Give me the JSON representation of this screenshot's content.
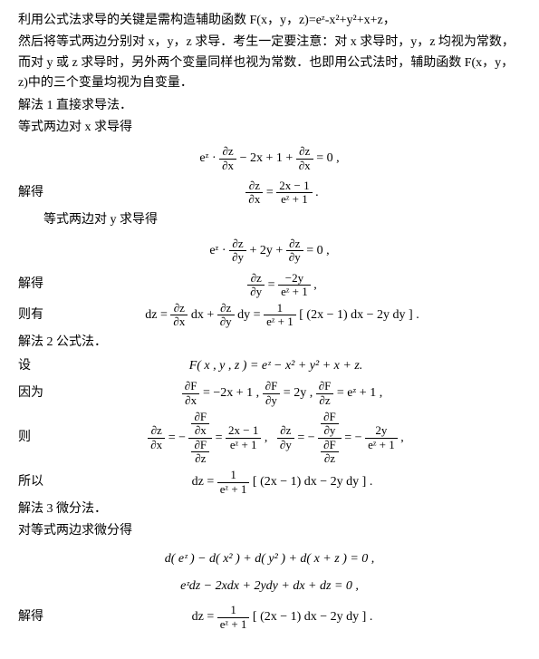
{
  "p1": "利用公式法求导的关键是需构造辅助函数 F(x，y，z)=eᶻ-x²+y²+x+z，",
  "p2": "然后将等式两边分别对 x，y，z 求导．考生一定要注意：对 x 求导时，y，z 均视为常数，而对 y 或 z 求导时，另外两个变量同样也视为常数．也即用公式法时，辅助函数 F(x，y，z)中的三个变量均视为自变量．",
  "p3": "解法 1 直接求导法．",
  "p4": "等式两边对 x 求导得",
  "label_jiede": "解得",
  "p5": "等式两边对 y 求导得",
  "label_zeyou": "则有",
  "p6": "解法 2 公式法．",
  "label_she": "设",
  "label_yinwei": "因为",
  "label_ze": "则",
  "label_suoyi": "所以",
  "p7": "解法 3 微分法．",
  "p8": "对等式两边求微分得",
  "eq1_a": "eᶻ ·",
  "eq1_num1": "∂z",
  "eq1_den1": "∂x",
  "eq1_b": "− 2x + 1 +",
  "eq1_num2": "∂z",
  "eq1_den2": "∂x",
  "eq1_c": "= 0 ,",
  "eq2_l_num": "∂z",
  "eq2_l_den": "∂x",
  "eq2_mid": "=",
  "eq2_r_num": "2x − 1",
  "eq2_r_den": "eᶻ + 1",
  "eq2_end": ".",
  "eq3_a": "eᶻ ·",
  "eq3_num1": "∂z",
  "eq3_den1": "∂y",
  "eq3_b": "+ 2y +",
  "eq3_num2": "∂z",
  "eq3_den2": "∂y",
  "eq3_c": "= 0 ,",
  "eq4_l_num": "∂z",
  "eq4_l_den": "∂y",
  "eq4_mid": "=",
  "eq4_r_num": "−2y",
  "eq4_r_den": "eᶻ + 1",
  "eq4_end": ",",
  "eq5_a": "dz =",
  "eq5_num1": "∂z",
  "eq5_den1": "∂x",
  "eq5_b": "dx +",
  "eq5_num2": "∂z",
  "eq5_den2": "∂y",
  "eq5_c": "dy =",
  "eq5_num3": "1",
  "eq5_den3": "eᶻ + 1",
  "eq5_d": "[ (2x − 1) dx − 2y dy ] .",
  "eq6": "F( x , y , z ) = eᶻ − x² + y² + x + z.",
  "eq7_num1": "∂F",
  "eq7_den1": "∂x",
  "eq7_a": "= −2x + 1 ,",
  "eq7_num2": "∂F",
  "eq7_den2": "∂y",
  "eq7_b": "= 2y ,",
  "eq7_num3": "∂F",
  "eq7_den3": "∂z",
  "eq7_c": "= eᶻ + 1 ,",
  "eq8_l_num": "∂z",
  "eq8_l_den": "∂x",
  "eq8_a": "= −",
  "eq8_big_num_num": "∂F",
  "eq8_big_num_den": "∂x",
  "eq8_big_den_num": "∂F",
  "eq8_big_den_den": "∂z",
  "eq8_b": "=",
  "eq8_r_num": "2x − 1",
  "eq8_r_den": "eᶻ + 1",
  "eq8_c": ",",
  "eq8_l2_num": "∂z",
  "eq8_l2_den": "∂y",
  "eq8_d": "= −",
  "eq8_big2_num_num": "∂F",
  "eq8_big2_num_den": "∂y",
  "eq8_big2_den_num": "∂F",
  "eq8_big2_den_den": "∂z",
  "eq8_e": "= −",
  "eq8_r2_num": "2y",
  "eq8_r2_den": "eᶻ + 1",
  "eq8_f": ",",
  "eq9_a": "dz =",
  "eq9_num": "1",
  "eq9_den": "eᶻ + 1",
  "eq9_b": "[ (2x − 1) dx − 2y dy ] .",
  "eq10": "d( eᶻ ) − d( x² ) + d( y² ) + d( x + z ) = 0 ,",
  "eq11": "eᶻdz − 2xdx + 2ydy + dx + dz = 0 ,",
  "eq12_a": "dz =",
  "eq12_num": "1",
  "eq12_den": "eᶻ + 1",
  "eq12_b": "[ (2x − 1) dx − 2y dy ] ."
}
